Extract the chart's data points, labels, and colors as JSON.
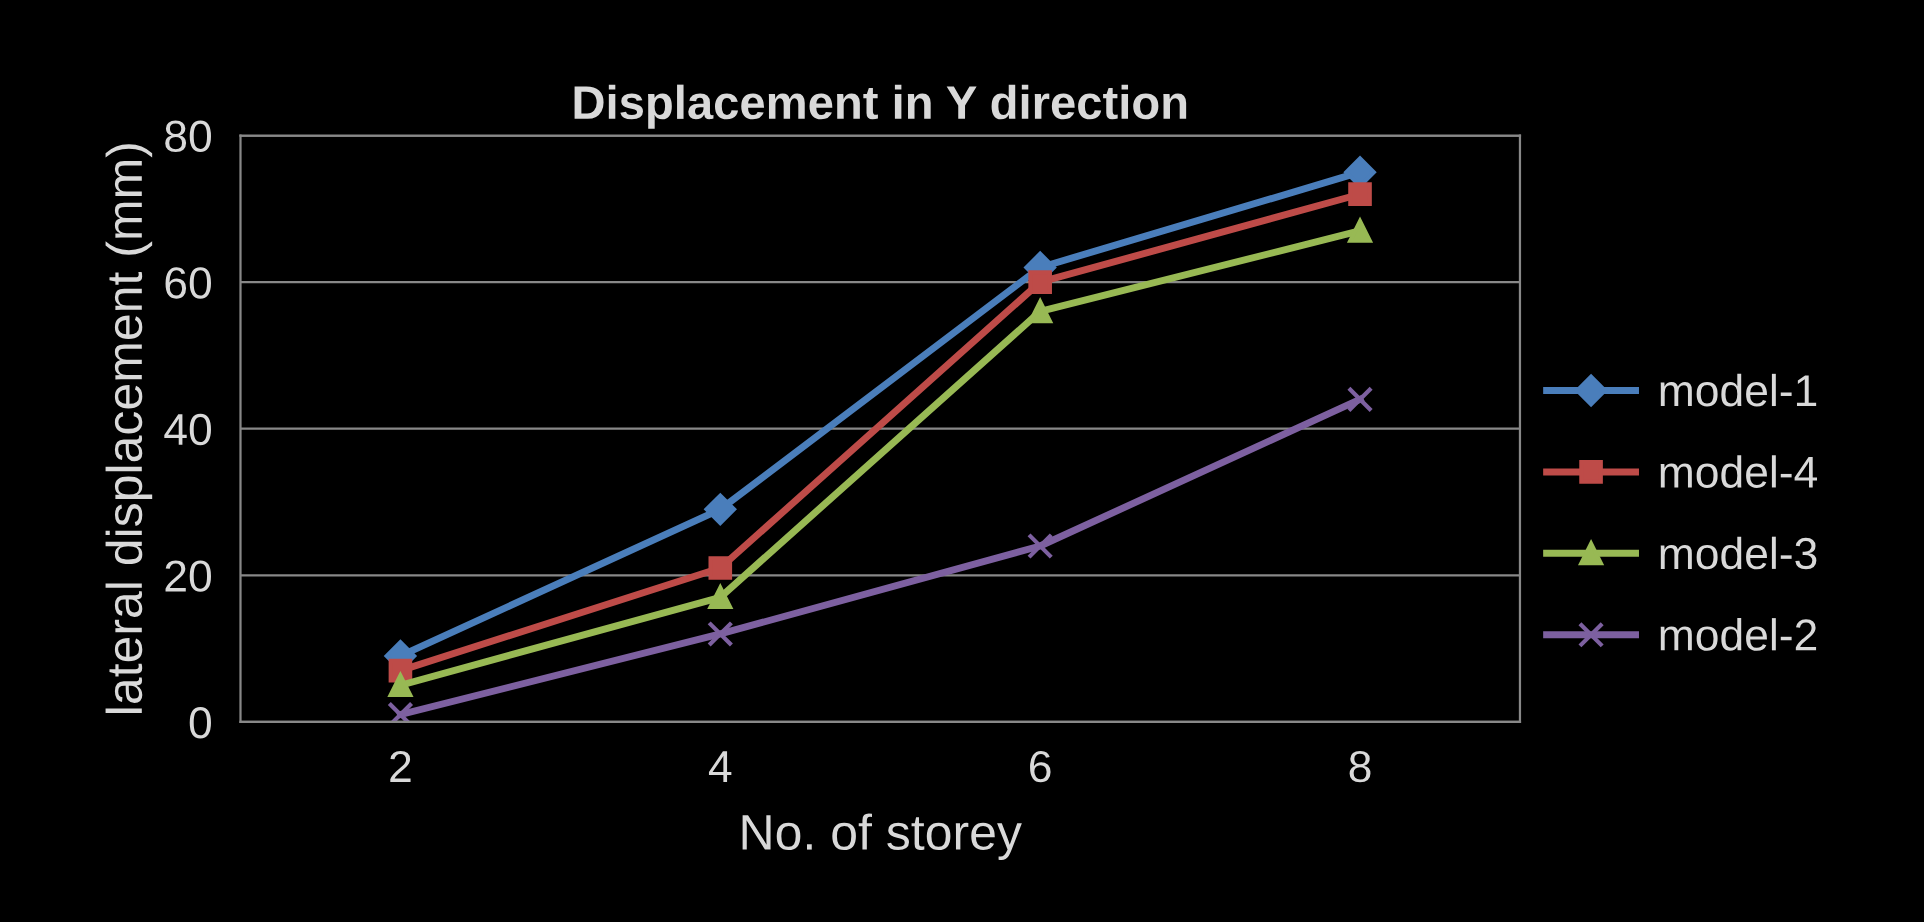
{
  "chart_data": {
    "type": "line",
    "title": "Displacement in Y direction",
    "xlabel": "No. of storey",
    "ylabel": "lateral displacement (mm)",
    "categories": [
      "2",
      "4",
      "6",
      "8"
    ],
    "series": [
      {
        "name": "model-1",
        "color": "#4a7ebb",
        "marker": "diamond",
        "values": [
          9,
          29,
          62,
          75
        ]
      },
      {
        "name": "model-4",
        "color": "#be4b48",
        "marker": "square",
        "values": [
          7,
          21,
          60,
          72
        ]
      },
      {
        "name": "model-3",
        "color": "#98b954",
        "marker": "triangle",
        "values": [
          5,
          17,
          56,
          67
        ]
      },
      {
        "name": "model-2",
        "color": "#7d60a0",
        "marker": "cross",
        "values": [
          1,
          12,
          24,
          44
        ]
      }
    ],
    "ylim": [
      0,
      80
    ],
    "yticks": [
      0,
      20,
      40,
      60,
      80
    ],
    "grid": "y",
    "legend": "right"
  }
}
